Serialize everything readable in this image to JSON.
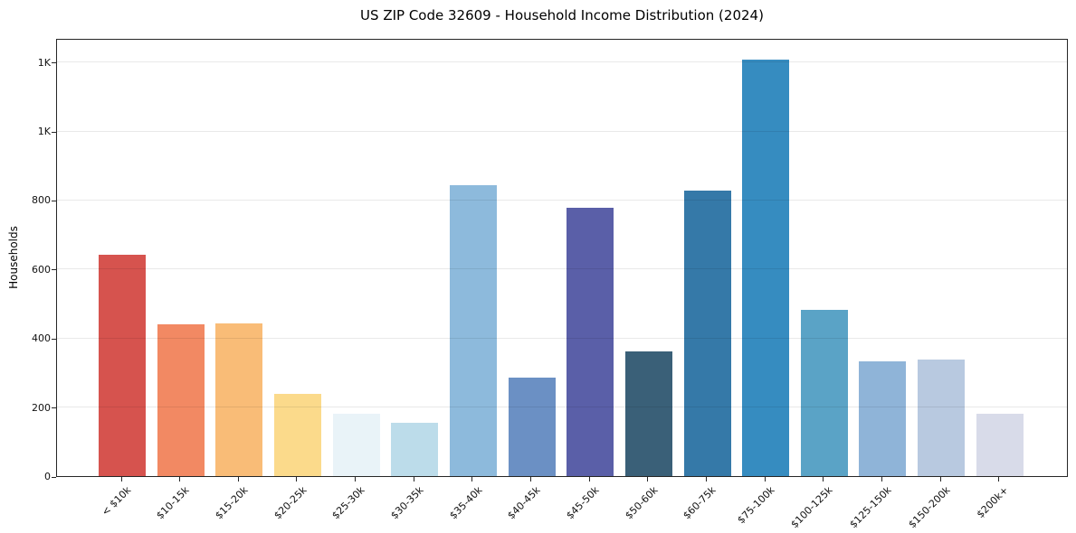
{
  "chart_data": {
    "type": "bar",
    "title": "US ZIP Code 32609 - Household Income Distribution (2024)",
    "xlabel": "",
    "ylabel": "Households",
    "ylim": [
      0,
      1270
    ],
    "grid": "horizontal",
    "legend": "none",
    "categories": [
      "< $10k",
      "$10-15k",
      "$15-20k",
      "$20-25k",
      "$25-30k",
      "$30-35k",
      "$35-40k",
      "$40-45k",
      "$45-50k",
      "$50-60k",
      "$60-75k",
      "$75-100k",
      "$100-125k",
      "$125-150k",
      "$150-200k",
      "$200k+"
    ],
    "values": [
      642,
      440,
      443,
      238,
      180,
      154,
      844,
      286,
      777,
      362,
      828,
      1206,
      483,
      333,
      338,
      182
    ],
    "bar_colors": [
      "#d6534e",
      "#f28963",
      "#f9bc77",
      "#fbda8b",
      "#e9f3f8",
      "#bcdcea",
      "#8dbadc",
      "#6b90c4",
      "#5a5fa8",
      "#3a6078",
      "#3579a8",
      "#368cc0",
      "#5aa3c6",
      "#8fb4d8",
      "#b8c9e0",
      "#d8dbe9"
    ],
    "yticks": [
      {
        "v": 0,
        "label": "0"
      },
      {
        "v": 200,
        "label": "200"
      },
      {
        "v": 400,
        "label": "400"
      },
      {
        "v": 600,
        "label": "600"
      },
      {
        "v": 800,
        "label": "800"
      },
      {
        "v": 1000,
        "label": "1K"
      },
      {
        "v": 1200,
        "label": "1K"
      }
    ]
  }
}
